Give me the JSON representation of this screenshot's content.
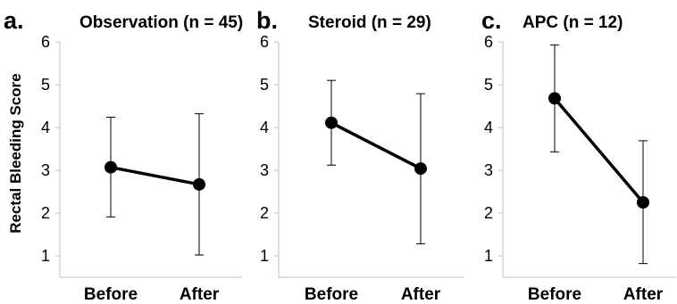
{
  "figure": {
    "ylabel": "Rectal Bleeding Score"
  },
  "chart_data": [
    {
      "type": "line",
      "panel_label": "a.",
      "title": "Observation (n = 45)",
      "categories": [
        "Before",
        "After"
      ],
      "values": [
        3.07,
        2.67
      ],
      "error_upper": [
        4.24,
        4.32
      ],
      "error_lower": [
        1.91,
        1.02
      ],
      "ylim": [
        0.5,
        6
      ],
      "yticks": [
        1,
        2,
        3,
        4,
        5,
        6
      ],
      "ylabel": "Rectal Bleeding Score",
      "grid": false
    },
    {
      "type": "line",
      "panel_label": "b.",
      "title": "Steroid  (n = 29)",
      "categories": [
        "Before",
        "After"
      ],
      "values": [
        4.11,
        3.04
      ],
      "error_upper": [
        5.1,
        4.79
      ],
      "error_lower": [
        3.12,
        1.28
      ],
      "ylim": [
        0.5,
        6
      ],
      "yticks": [
        1,
        2,
        3,
        4,
        5,
        6
      ],
      "grid": false
    },
    {
      "type": "line",
      "panel_label": "c.",
      "title": "APC (n = 12)",
      "categories": [
        "Before",
        "After"
      ],
      "values": [
        4.68,
        2.25
      ],
      "error_upper": [
        5.93,
        3.69
      ],
      "error_lower": [
        3.43,
        0.82
      ],
      "ylim": [
        0.5,
        6
      ],
      "yticks": [
        1,
        2,
        3,
        4,
        5,
        6
      ],
      "grid": false
    }
  ]
}
